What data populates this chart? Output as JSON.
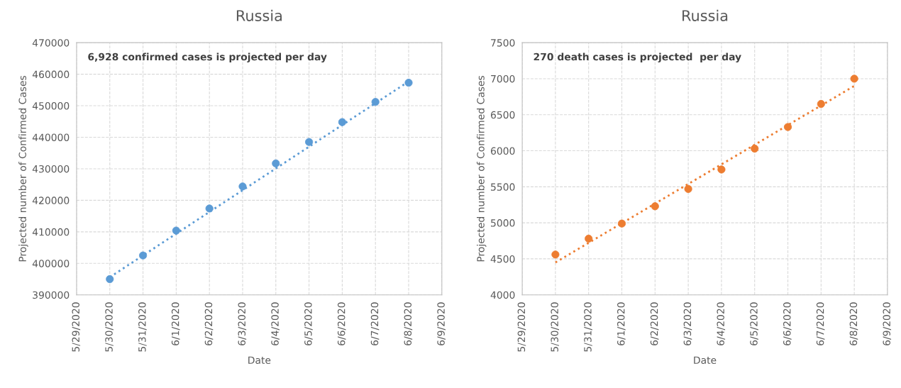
{
  "chart_data": [
    {
      "type": "scatter",
      "title": "Russia",
      "xlabel": "Date",
      "ylabel": "Projected number of Confirmed Cases",
      "annotations": [
        "6,928 confirmed cases is projected per day"
      ],
      "grid": true,
      "legend": false,
      "x": [
        "2020-05-30",
        "2020-05-31",
        "2020-06-01",
        "2020-06-02",
        "2020-06-03",
        "2020-06-04",
        "2020-06-05",
        "2020-06-06",
        "2020-06-07",
        "2020-06-08"
      ],
      "series": [
        {
          "marker": "circle",
          "color": "#5b9bd5",
          "values": [
            395000,
            402500,
            410400,
            417400,
            424400,
            431700,
            438500,
            444800,
            451200,
            457300
          ]
        },
        {
          "type": "line",
          "marker": "none",
          "line_style": "dotted",
          "color": "#5b9bd5",
          "x": [
            "2020-05-30",
            "2020-06-08"
          ],
          "values": [
            395600,
            457700
          ]
        }
      ],
      "xlim": [
        "2020-05-29",
        "2020-06-09"
      ],
      "xticks": [
        {
          "value": "2020-05-29",
          "label": "5/29/2020"
        },
        {
          "value": "2020-05-30",
          "label": "5/30/2020"
        },
        {
          "value": "2020-05-31",
          "label": "5/31/2020"
        },
        {
          "value": "2020-06-01",
          "label": "6/1/2020"
        },
        {
          "value": "2020-06-02",
          "label": "6/2/2020"
        },
        {
          "value": "2020-06-03",
          "label": "6/3/2020"
        },
        {
          "value": "2020-06-04",
          "label": "6/4/2020"
        },
        {
          "value": "2020-06-05",
          "label": "6/5/2020"
        },
        {
          "value": "2020-06-06",
          "label": "6/6/2020"
        },
        {
          "value": "2020-06-07",
          "label": "6/7/2020"
        },
        {
          "value": "2020-06-08",
          "label": "6/8/2020"
        },
        {
          "value": "2020-06-09",
          "label": "6/9/2020"
        }
      ],
      "ylim": [
        390000,
        470000
      ],
      "yticks": [
        390000,
        400000,
        410000,
        420000,
        430000,
        440000,
        450000,
        460000,
        470000
      ]
    },
    {
      "type": "scatter",
      "title": "Russia",
      "xlabel": "Date",
      "ylabel": "Projected number of Confirmed Cases",
      "annotations": [
        "270 death cases is projected  per day"
      ],
      "grid": true,
      "legend": false,
      "x": [
        "2020-05-30",
        "2020-05-31",
        "2020-06-01",
        "2020-06-02",
        "2020-06-03",
        "2020-06-04",
        "2020-06-05",
        "2020-06-06",
        "2020-06-07",
        "2020-06-08"
      ],
      "series": [
        {
          "marker": "circle",
          "color": "#ed7d31",
          "values": [
            4560,
            4780,
            4990,
            5230,
            5470,
            5740,
            6030,
            6330,
            6650,
            7000
          ]
        },
        {
          "type": "line",
          "marker": "none",
          "line_style": "dotted",
          "color": "#ed7d31",
          "x": [
            "2020-05-30",
            "2020-06-08"
          ],
          "values": [
            4450,
            6900
          ]
        }
      ],
      "xlim": [
        "2020-05-29",
        "2020-06-09"
      ],
      "xticks": [
        {
          "value": "2020-05-29",
          "label": "5/29/2020"
        },
        {
          "value": "2020-05-30",
          "label": "5/30/2020"
        },
        {
          "value": "2020-05-31",
          "label": "5/31/2020"
        },
        {
          "value": "2020-06-01",
          "label": "6/1/2020"
        },
        {
          "value": "2020-06-02",
          "label": "6/2/2020"
        },
        {
          "value": "2020-06-03",
          "label": "6/3/2020"
        },
        {
          "value": "2020-06-04",
          "label": "6/4/2020"
        },
        {
          "value": "2020-06-05",
          "label": "6/5/2020"
        },
        {
          "value": "2020-06-06",
          "label": "6/6/2020"
        },
        {
          "value": "2020-06-07",
          "label": "6/7/2020"
        },
        {
          "value": "2020-06-08",
          "label": "6/8/2020"
        },
        {
          "value": "2020-06-09",
          "label": "6/9/2020"
        }
      ],
      "ylim": [
        4000,
        7500
      ],
      "yticks": [
        4000,
        4500,
        5000,
        5500,
        6000,
        6500,
        7000,
        7500
      ]
    }
  ]
}
